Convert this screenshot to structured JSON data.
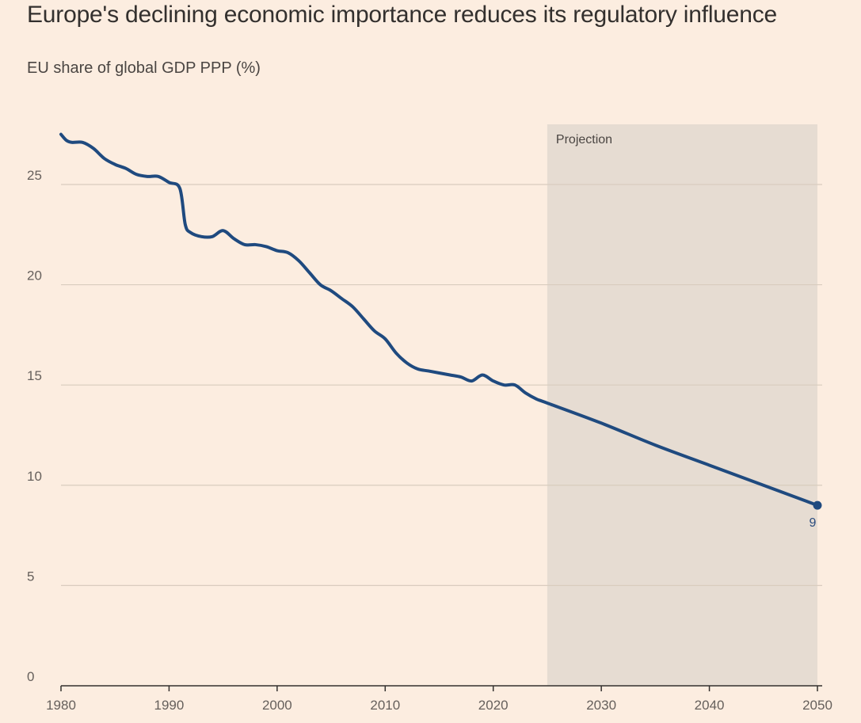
{
  "header": {
    "title": "Europe's declining economic importance reduces its regulatory influence",
    "subtitle": "EU share of global GDP PPP (%)"
  },
  "colors": {
    "background": "#FCEDE0",
    "line": "#1F4A7F",
    "projection_band": "#E6DCD2",
    "gridline": "#D9CCBE",
    "axis": "#33302E"
  },
  "chart_data": {
    "type": "line",
    "title": "Europe's declining economic importance reduces its regulatory influence",
    "ylabel": "EU share of global GDP PPP (%)",
    "xlabel": "",
    "xlim": [
      1980,
      2050
    ],
    "ylim": [
      0,
      28
    ],
    "x_ticks": [
      1980,
      1990,
      2000,
      2010,
      2020,
      2030,
      2040,
      2050
    ],
    "y_ticks": [
      0,
      5,
      10,
      15,
      20,
      25
    ],
    "grid": true,
    "projection": {
      "label": "Projection",
      "start": 2025,
      "end": 2050
    },
    "end_label": "9",
    "series": [
      {
        "name": "EU share of global GDP PPP",
        "x": [
          1980,
          1980.5,
          1981,
          1982,
          1983,
          1984,
          1985,
          1986,
          1987,
          1988,
          1989,
          1990,
          1991,
          1991.5,
          1992,
          1993,
          1994,
          1995,
          1996,
          1997,
          1998,
          1999,
          2000,
          2001,
          2002,
          2003,
          2004,
          2005,
          2006,
          2007,
          2008,
          2009,
          2010,
          2011,
          2012,
          2013,
          2014,
          2015,
          2016,
          2017,
          2018,
          2019,
          2020,
          2021,
          2022,
          2023,
          2024,
          2025,
          2030,
          2035,
          2040,
          2045,
          2050
        ],
        "values": [
          27.5,
          27.2,
          27.1,
          27.1,
          26.8,
          26.3,
          26.0,
          25.8,
          25.5,
          25.4,
          25.4,
          25.1,
          24.8,
          23.0,
          22.6,
          22.4,
          22.4,
          22.7,
          22.3,
          22.0,
          22.0,
          21.9,
          21.7,
          21.6,
          21.2,
          20.6,
          20.0,
          19.7,
          19.3,
          18.9,
          18.3,
          17.7,
          17.3,
          16.6,
          16.1,
          15.8,
          15.7,
          15.6,
          15.5,
          15.4,
          15.2,
          15.5,
          15.2,
          15.0,
          15.0,
          14.6,
          14.3,
          14.1,
          13.1,
          12.0,
          11.0,
          10.0,
          9.0
        ]
      }
    ]
  }
}
